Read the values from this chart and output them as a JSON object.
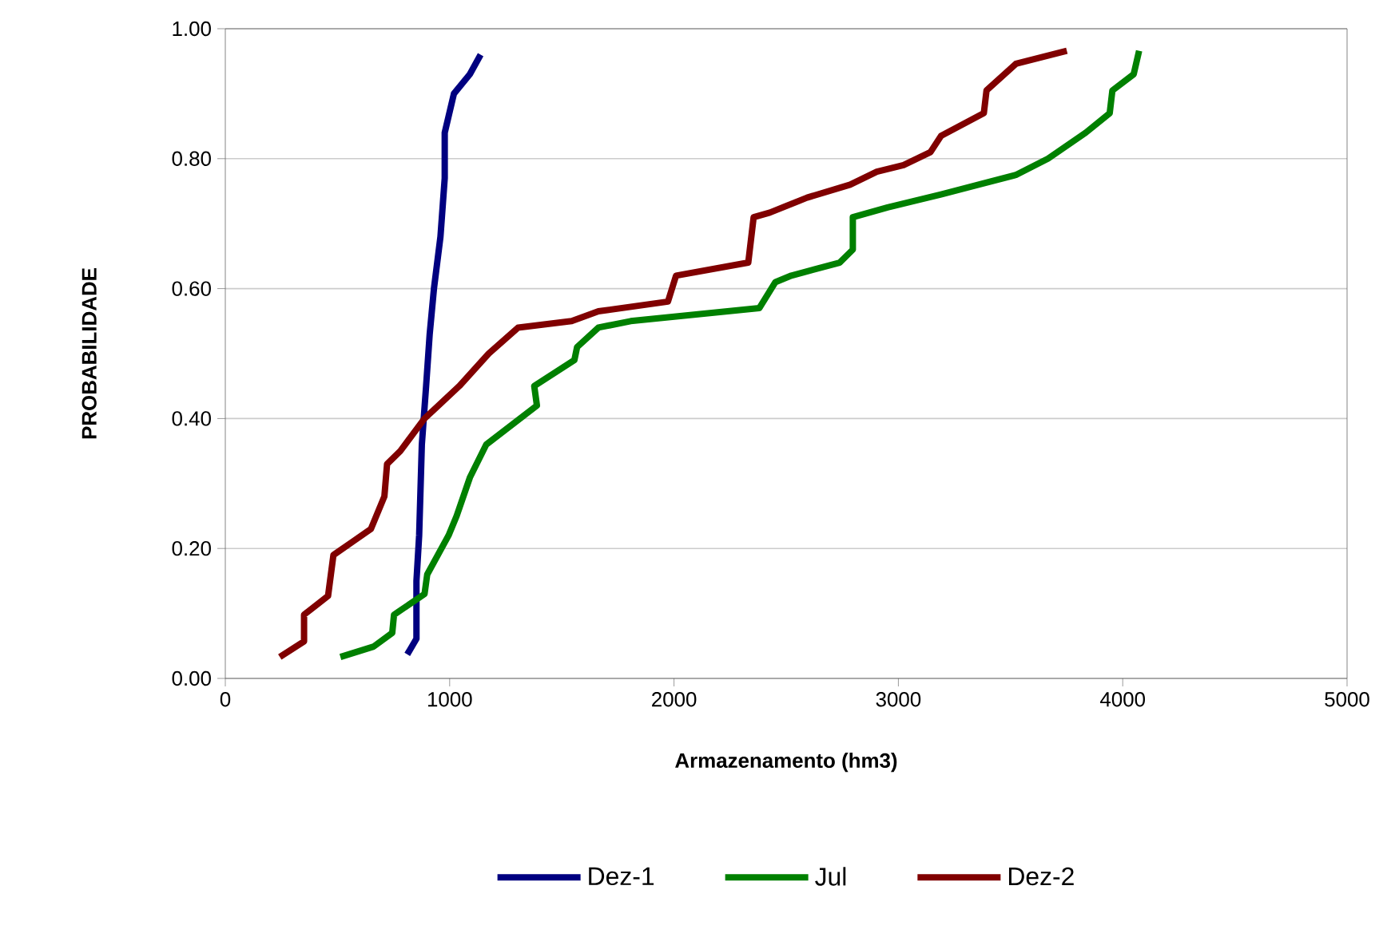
{
  "chart_data": {
    "type": "line",
    "xlabel": "Armazenamento (hm3)",
    "ylabel": "PROBABILIDADE",
    "xlim": [
      0,
      5000
    ],
    "xticks": [
      0,
      1000,
      2000,
      3000,
      4000,
      5000
    ],
    "ylim": [
      0,
      1
    ],
    "yticks": [
      {
        "value": 0,
        "label": "0.00"
      },
      {
        "value": 0.2,
        "label": "0.20"
      },
      {
        "value": 0.4,
        "label": "0.40"
      },
      {
        "value": 0.6,
        "label": "0.60"
      },
      {
        "value": 0.8,
        "label": "0.80"
      },
      {
        "value": 1,
        "label": "1.00"
      }
    ],
    "grid": "y",
    "legend": "bottom",
    "marker": "none",
    "line_style": "solid",
    "series": [
      {
        "name": "Dez-1",
        "color": "#000080",
        "x": [
          811,
          852,
          852,
          864,
          876,
          895,
          911,
          930,
          959,
          978,
          978,
          1019,
          1090,
          1138
        ],
        "values": [
          0.037,
          0.061,
          0.15,
          0.22,
          0.36,
          0.45,
          0.53,
          0.6,
          0.68,
          0.77,
          0.84,
          0.9,
          0.93,
          0.96
        ]
      },
      {
        "name": "Jul",
        "color": "#008000",
        "x": [
          513,
          661,
          744,
          752,
          888,
          900,
          995,
          1031,
          1091,
          1163,
          1389,
          1377,
          1556,
          1568,
          1663,
          1807,
          2380,
          2452,
          2523,
          2738,
          2797,
          2797,
          2952,
          3190,
          3357,
          3524,
          3667,
          3835,
          3942,
          3954,
          4049,
          4073
        ],
        "values": [
          0.033,
          0.049,
          0.07,
          0.098,
          0.13,
          0.16,
          0.22,
          0.25,
          0.31,
          0.36,
          0.42,
          0.45,
          0.49,
          0.51,
          0.54,
          0.55,
          0.57,
          0.61,
          0.62,
          0.64,
          0.66,
          0.71,
          0.725,
          0.745,
          0.76,
          0.775,
          0.8,
          0.84,
          0.87,
          0.905,
          0.93,
          0.966
        ]
      },
      {
        "name": "Dez-2",
        "color": "#800000",
        "x": [
          243,
          351,
          351,
          458,
          482,
          566,
          649,
          709,
          721,
          780,
          888,
          1043,
          1174,
          1305,
          1544,
          1663,
          1973,
          2009,
          2331,
          2355,
          2427,
          2593,
          2785,
          2904,
          3023,
          3143,
          3190,
          3381,
          3393,
          3524,
          3751
        ],
        "values": [
          0.033,
          0.057,
          0.098,
          0.127,
          0.19,
          0.21,
          0.23,
          0.28,
          0.33,
          0.35,
          0.4,
          0.45,
          0.5,
          0.54,
          0.55,
          0.565,
          0.58,
          0.62,
          0.64,
          0.71,
          0.717,
          0.74,
          0.76,
          0.78,
          0.79,
          0.81,
          0.835,
          0.87,
          0.905,
          0.946,
          0.966
        ]
      }
    ]
  }
}
